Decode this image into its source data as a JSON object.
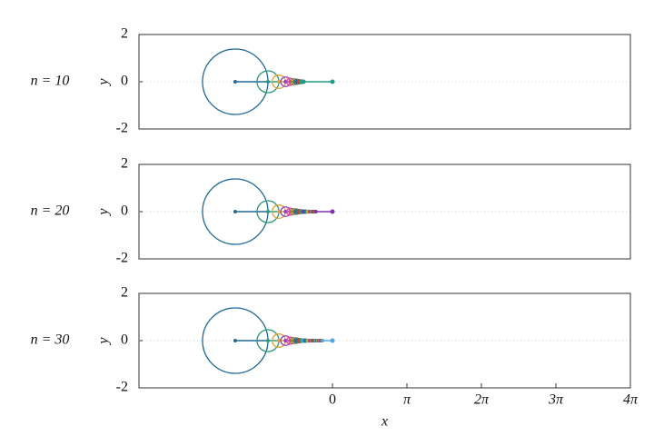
{
  "chart_data": [
    {
      "type": "epicycle",
      "label": "n = 10",
      "ylabel": "y",
      "xlim": [
        -8.16,
        12.566
      ],
      "ylim": [
        -2,
        2
      ],
      "yticks": [
        -2,
        0,
        2
      ],
      "grid": true,
      "x": [
        -4.1,
        -2.72,
        -2.26,
        -1.98,
        -1.78,
        -1.63,
        -1.5,
        -1.39,
        -1.3,
        -1.22
      ],
      "values": [
        0,
        0,
        0,
        0,
        0,
        0,
        0,
        0,
        0,
        0
      ],
      "radii": [
        1.38,
        0.46,
        0.28,
        0.2,
        0.15,
        0.13,
        0.11,
        0.09,
        0.08,
        0.07
      ],
      "end": [
        0,
        0
      ],
      "colors": [
        "#1f6a99",
        "#2a9a7a",
        "#e0a030",
        "#9040c0",
        "#e04090",
        "#8a8a20",
        "#1f6a99",
        "#d04020",
        "#2a9a7a",
        "#229988"
      ]
    },
    {
      "type": "epicycle",
      "label": "n = 20",
      "ylabel": "y",
      "xlim": [
        -8.16,
        12.566
      ],
      "ylim": [
        -2,
        2
      ],
      "yticks": [
        -2,
        0,
        2
      ],
      "grid": true,
      "x": [
        -4.1,
        -2.72,
        -2.26,
        -1.98,
        -1.78,
        -1.63,
        -1.5,
        -1.39,
        -1.3,
        -1.22,
        -1.15,
        -1.08,
        -1.02,
        -0.96,
        -0.91,
        -0.86,
        -0.82,
        -0.78,
        -0.74,
        -0.7
      ],
      "values": [
        0,
        0,
        0,
        0,
        0,
        0,
        0,
        0,
        0,
        0,
        0,
        0,
        0,
        0,
        0,
        0,
        0,
        0,
        0,
        0
      ],
      "radii": [
        1.38,
        0.46,
        0.28,
        0.2,
        0.15,
        0.13,
        0.11,
        0.09,
        0.08,
        0.07,
        0.07,
        0.06,
        0.06,
        0.05,
        0.05,
        0.04,
        0.04,
        0.04,
        0.04,
        0.04
      ],
      "end": [
        0,
        0
      ],
      "colors": [
        "#1f6a99",
        "#2a9a7a",
        "#e0a030",
        "#9040c0",
        "#e04090",
        "#8a8a20",
        "#1f6a99",
        "#d04020",
        "#2a9a7a",
        "#8030b0"
      ]
    },
    {
      "type": "epicycle",
      "label": "n = 30",
      "ylabel": "y",
      "xlabel": "x",
      "xlim": [
        -8.16,
        12.566
      ],
      "ylim": [
        -2,
        2
      ],
      "yticks": [
        -2,
        0,
        2
      ],
      "grid": true,
      "xticks": [
        0,
        {
          "value": 3.14159,
          "label": "π"
        },
        {
          "value": 6.28319,
          "label": "2π"
        },
        {
          "value": 9.42478,
          "label": "3π"
        },
        {
          "value": 12.56637,
          "label": "4π"
        }
      ],
      "x": [
        -4.1,
        -2.72,
        -2.26,
        -1.98,
        -1.78,
        -1.63,
        -1.5,
        -1.39,
        -1.3,
        -1.22,
        -1.15,
        -1.08,
        -1.02,
        -0.96,
        -0.91,
        -0.86,
        -0.82,
        -0.78,
        -0.74,
        -0.7,
        -0.66,
        -0.63,
        -0.6,
        -0.57,
        -0.54,
        -0.51,
        -0.48,
        -0.46,
        -0.44,
        -0.42
      ],
      "values": [
        0,
        0,
        0,
        0,
        0,
        0,
        0,
        0,
        0,
        0,
        0,
        0,
        0,
        0,
        0,
        0,
        0,
        0,
        0,
        0,
        0,
        0,
        0,
        0,
        0,
        0,
        0,
        0,
        0,
        0
      ],
      "radii": [
        1.38,
        0.46,
        0.28,
        0.2,
        0.15,
        0.13,
        0.11,
        0.09,
        0.08,
        0.07,
        0.07,
        0.06,
        0.06,
        0.05,
        0.05,
        0.04,
        0.04,
        0.04,
        0.04,
        0.04,
        0.03,
        0.03,
        0.03,
        0.03,
        0.03,
        0.03,
        0.02,
        0.02,
        0.02,
        0.02
      ],
      "end": [
        0,
        0
      ],
      "colors": [
        "#1f6a99",
        "#2a9a7a",
        "#e0a030",
        "#9040c0",
        "#e04090",
        "#8a8a20",
        "#1f6a99",
        "#d04020",
        "#2a9a7a",
        "#50a8e0"
      ]
    }
  ]
}
